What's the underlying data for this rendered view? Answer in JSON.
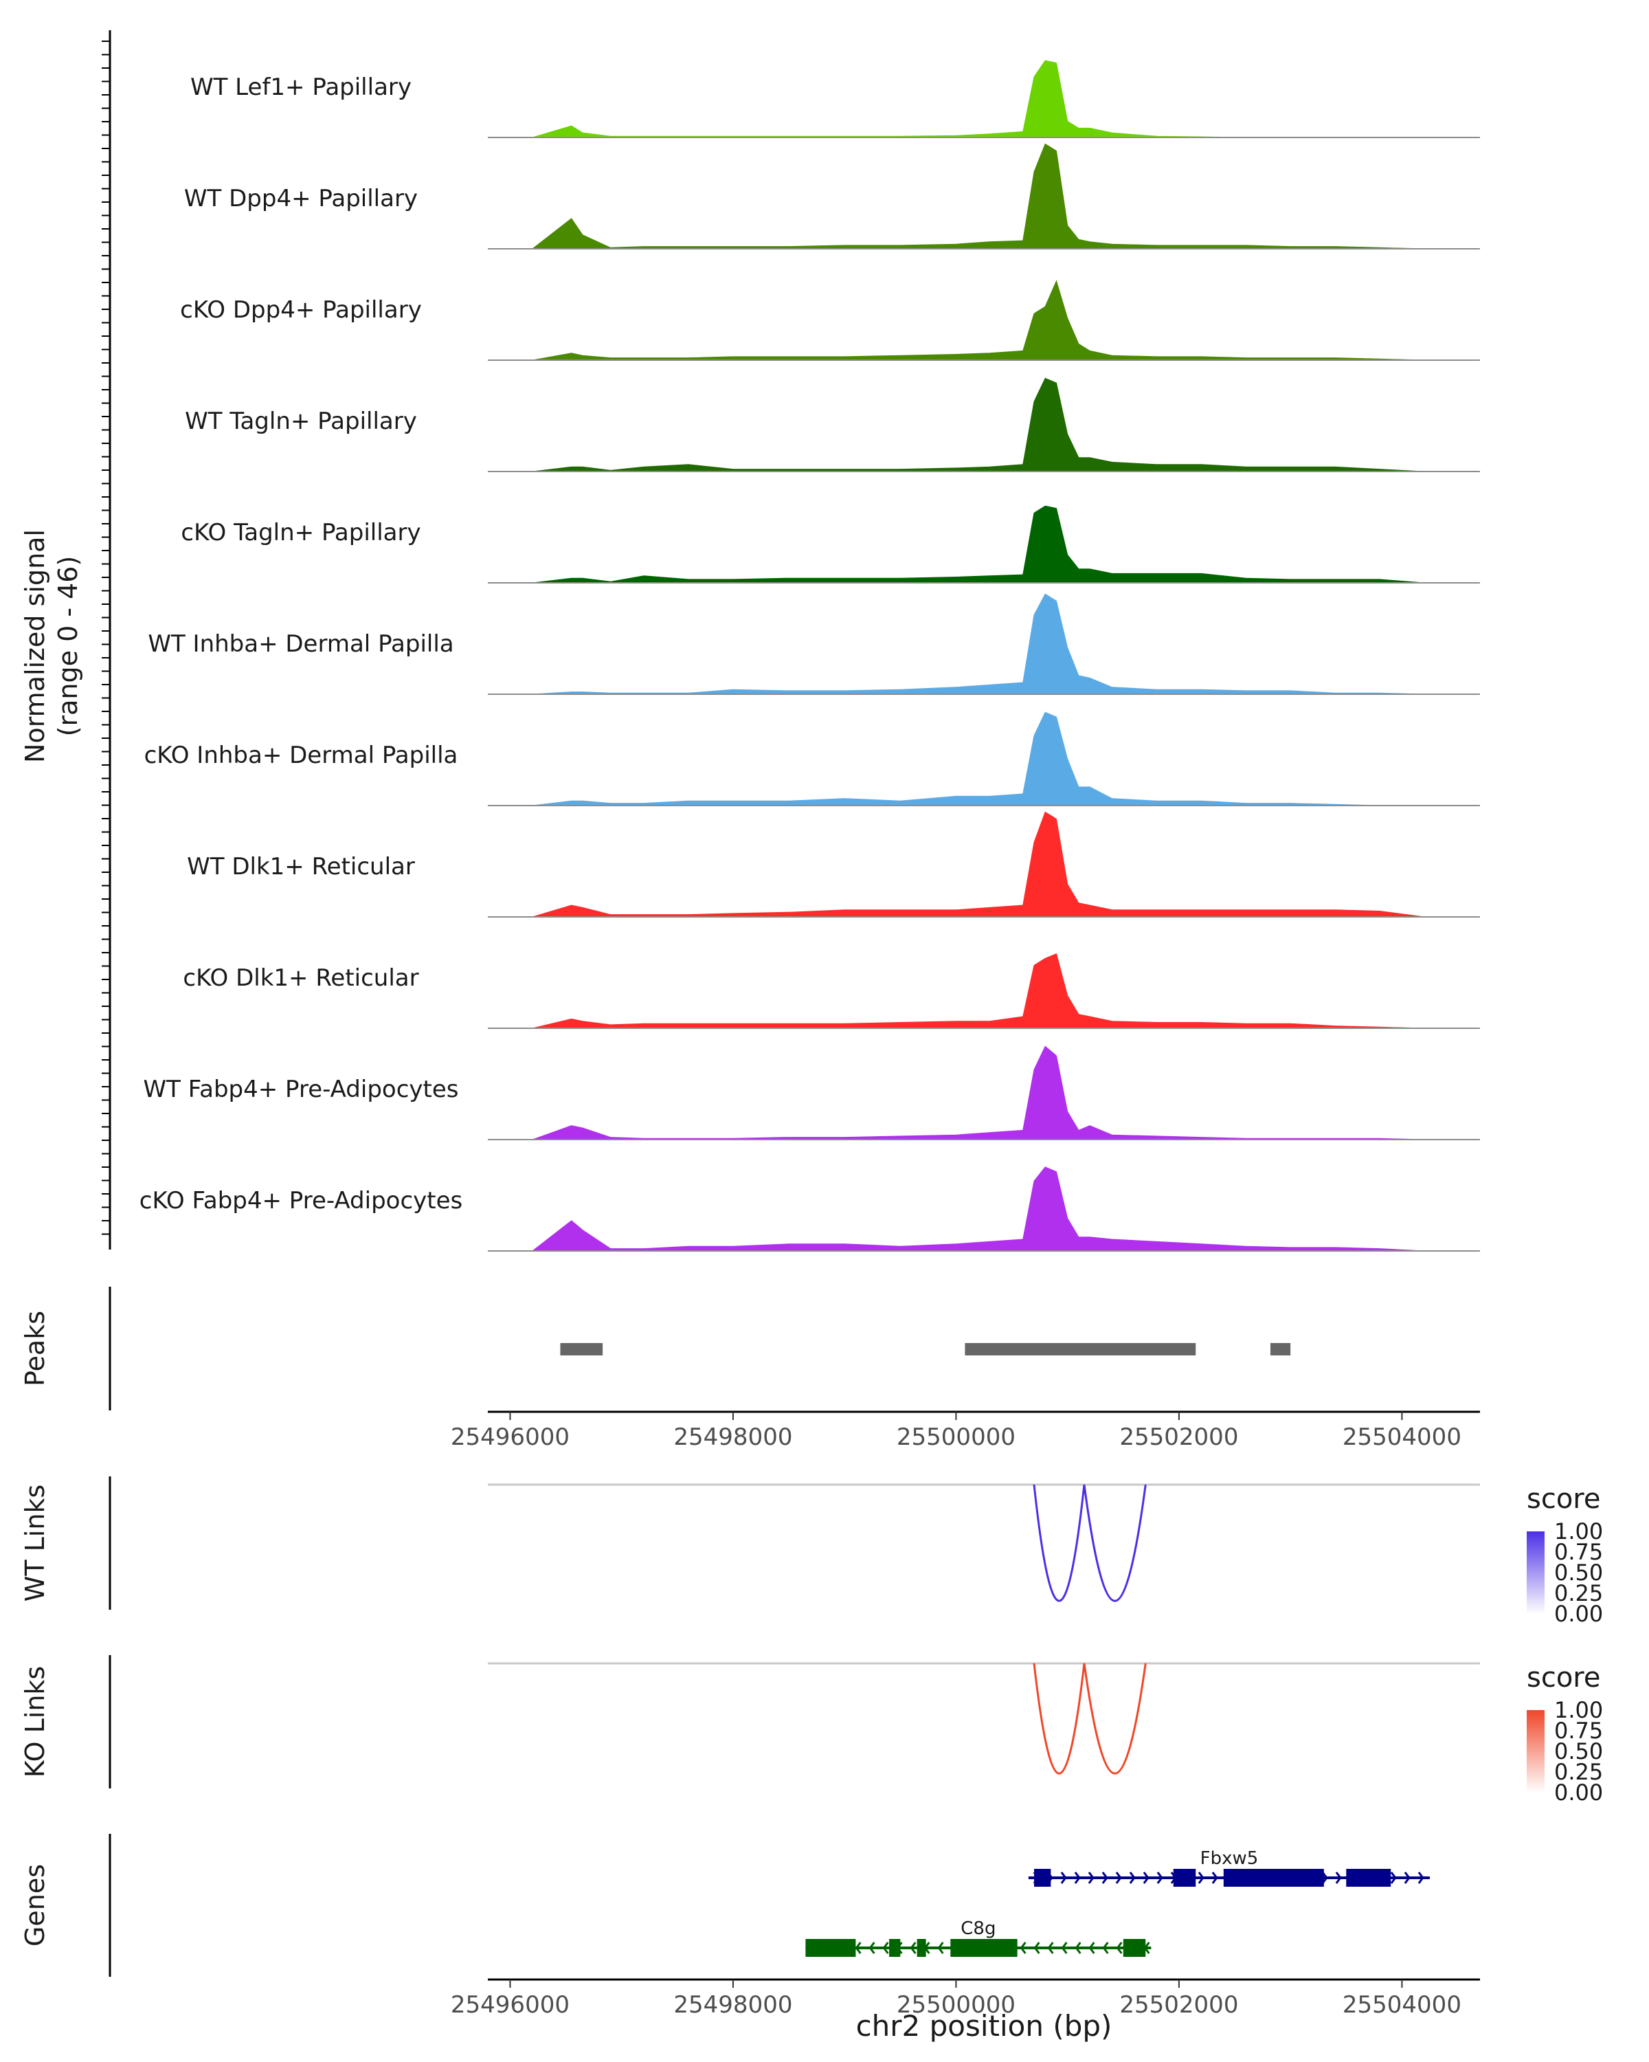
{
  "chart_data": {
    "type": "area",
    "title": "",
    "region": {
      "chromosome": "chr2",
      "start": 25495800,
      "end": 25504700
    },
    "xlabel": "chr2 position (bp)",
    "x_ticks": [
      "25496000",
      "25498000",
      "25500000",
      "25502000",
      "25504000"
    ],
    "x_tick_values": [
      25496000,
      25498000,
      25500000,
      25502000,
      25504000
    ],
    "coverage": {
      "ylabel_line1": "Normalized signal",
      "ylabel_line2": "(range 0 - 46)",
      "ylim": [
        0,
        46
      ],
      "x_positions": [
        25496200,
        25496550,
        25496650,
        25496900,
        25497200,
        25497600,
        25498000,
        25498500,
        25499000,
        25499500,
        25500000,
        25500300,
        25500600,
        25500700,
        25500800,
        25500900,
        25501000,
        25501100,
        25501200,
        25501400,
        25501800,
        25502200,
        25502600,
        25503000,
        25503400,
        25503800,
        25504200
      ],
      "tracks": [
        {
          "name": "WT Lef1+ Papillary",
          "color": "#6BD300",
          "values": [
            0,
            5,
            2,
            0.5,
            0.5,
            0.5,
            0.5,
            0.5,
            0.5,
            0.5,
            0.8,
            1.5,
            2.5,
            26,
            33,
            32,
            7,
            4,
            4,
            2,
            0.5,
            0.3,
            0,
            0,
            0,
            0,
            0
          ]
        },
        {
          "name": "WT Dpp4+ Papillary",
          "color": "#4A8A00",
          "values": [
            0,
            13,
            6,
            0.5,
            1,
            1,
            1,
            1,
            1.5,
            1.5,
            2,
            3,
            3.5,
            33,
            45,
            42,
            10,
            4,
            3,
            2,
            1.5,
            1.5,
            1.5,
            1,
            1,
            0.5,
            0
          ]
        },
        {
          "name": "cKO Dpp4+ Papillary",
          "color": "#4A8A00",
          "values": [
            0,
            3,
            2,
            1,
            1,
            1,
            1.5,
            1.5,
            1.5,
            2,
            2.5,
            3,
            4,
            20,
            23,
            34,
            18,
            7,
            4,
            2,
            1.5,
            1.5,
            1,
            1,
            1,
            0.5,
            0
          ]
        },
        {
          "name": "WT Tagln+ Papillary",
          "color": "#1F6B00",
          "values": [
            0,
            2,
            2,
            0.5,
            2,
            3,
            1,
            1,
            1,
            1,
            1.5,
            2,
            3,
            30,
            40,
            38,
            16,
            6,
            6,
            4,
            3,
            3,
            2,
            2,
            2,
            1,
            0
          ]
        },
        {
          "name": "cKO Tagln+ Papillary",
          "color": "#006400",
          "values": [
            0,
            2,
            2,
            0.5,
            3,
            1.5,
            1.5,
            2,
            2,
            2,
            2.5,
            3,
            3.5,
            30,
            33,
            32,
            12,
            6,
            6,
            4,
            4,
            4,
            2,
            1.5,
            1.5,
            1.5,
            0
          ]
        },
        {
          "name": "WT Inhba+ Dermal Papilla",
          "color": "#5AAAE6",
          "values": [
            0,
            1,
            1,
            0.5,
            0.5,
            0.5,
            2,
            1.5,
            1.5,
            2,
            3,
            4,
            5,
            34,
            43,
            40,
            20,
            8,
            7,
            3,
            2,
            2,
            1.5,
            1.5,
            0.5,
            0.5,
            0
          ]
        },
        {
          "name": "cKO Inhba+ Dermal Papilla",
          "color": "#5AAAE6",
          "values": [
            0,
            2,
            2,
            1,
            1,
            2,
            2,
            2,
            3,
            2,
            4,
            4,
            5,
            30,
            40,
            38,
            20,
            8,
            8,
            3,
            2,
            2,
            1,
            1,
            0.5,
            0,
            0
          ]
        },
        {
          "name": "WT Dlk1+ Reticular",
          "color": "#FF2A2A",
          "values": [
            0,
            5,
            4,
            1,
            1,
            1,
            1.5,
            2,
            3,
            3,
            3,
            4,
            5,
            32,
            45,
            42,
            14,
            6,
            5,
            3,
            3,
            3,
            3,
            3,
            3,
            2.5,
            0
          ]
        },
        {
          "name": "cKO Dlk1+ Reticular",
          "color": "#FF2A2A",
          "values": [
            0,
            4,
            3,
            1.5,
            2,
            2,
            2,
            2,
            2,
            2.5,
            3,
            3,
            5,
            27,
            30,
            32,
            14,
            6,
            5,
            3,
            2.5,
            2.5,
            2,
            2,
            1,
            0.5,
            0
          ]
        },
        {
          "name": "WT Fabp4+ Pre-Adipocytes",
          "color": "#B030EE",
          "values": [
            0,
            6,
            5,
            1,
            0.5,
            0.5,
            0.5,
            1,
            1,
            1.5,
            2,
            3,
            4,
            30,
            40,
            36,
            12,
            4,
            6,
            2,
            1.5,
            1,
            0.5,
            0.5,
            0.5,
            0.5,
            0
          ]
        },
        {
          "name": "cKO Fabp4+ Pre-Adipocytes",
          "color": "#B030EE",
          "values": [
            0,
            13,
            9,
            1,
            1,
            2,
            2,
            3,
            3,
            2,
            3,
            4,
            5,
            30,
            36,
            34,
            14,
            6,
            6,
            5,
            4,
            3,
            2,
            1.5,
            1.5,
            1,
            0
          ]
        }
      ]
    },
    "peaks": {
      "label": "Peaks",
      "color": "#666666",
      "regions": [
        {
          "start": 25496450,
          "end": 25496830
        },
        {
          "start": 25500080,
          "end": 25502150
        },
        {
          "start": 25502820,
          "end": 25503000
        }
      ]
    },
    "links": [
      {
        "label": "WT Links",
        "legend_title": "score",
        "color": "#4B30E6",
        "legend_ticks": [
          "1.00",
          "0.75",
          "0.50",
          "0.25",
          "0.00"
        ],
        "arcs": [
          {
            "start": 25500700,
            "end": 25501150,
            "score": 0.95
          },
          {
            "start": 25501150,
            "end": 25501700,
            "score": 0.95
          }
        ]
      },
      {
        "label": "KO Links",
        "legend_title": "score",
        "color": "#F0472A",
        "legend_ticks": [
          "1.00",
          "0.75",
          "0.50",
          "0.25",
          "0.00"
        ],
        "arcs": [
          {
            "start": 25500700,
            "end": 25501150,
            "score": 0.9
          },
          {
            "start": 25501150,
            "end": 25501700,
            "score": 0.9
          }
        ]
      }
    ],
    "genes": {
      "label": "Genes",
      "items": [
        {
          "name": "Fbxw5",
          "strand": "+",
          "color": "#00008B",
          "start": 25500650,
          "end": 25504250,
          "exons": [
            [
              25500700,
              25500850
            ],
            [
              25501950,
              25502150
            ],
            [
              25502400,
              25503300
            ],
            [
              25503500,
              25503900
            ]
          ]
        },
        {
          "name": "C8g",
          "strand": "-",
          "color": "#006400",
          "start": 25498650,
          "end": 25501750,
          "exons": [
            [
              25498650,
              25499100
            ],
            [
              25499400,
              25499500
            ],
            [
              25499650,
              25499730
            ],
            [
              25499950,
              25500100
            ],
            [
              25500050,
              25500550
            ],
            [
              25501500,
              25501700
            ]
          ]
        }
      ]
    }
  }
}
